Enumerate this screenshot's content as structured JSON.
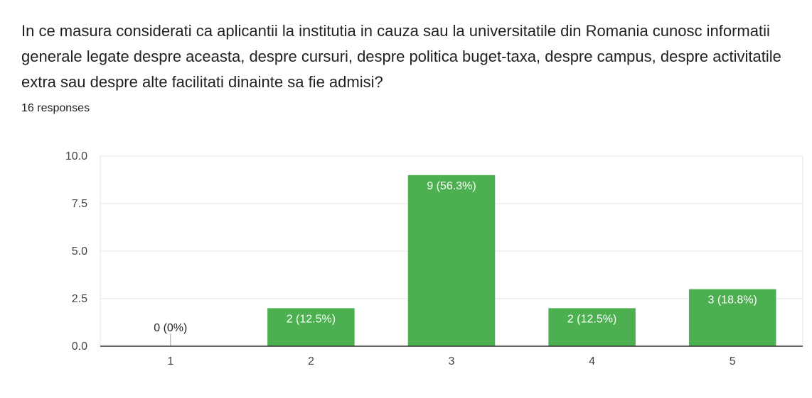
{
  "question": {
    "text": "In ce masura considerati ca aplicantii la institutia in cauza sau la universitatile din Romania cunosc informatii generale legate despre aceasta, despre cursuri, despre politica buget-taxa, despre campus, despre activitatile extra sau despre alte facilitati dinainte sa fie admisi?",
    "responses": "16 responses"
  },
  "chart_data": {
    "type": "bar",
    "categories": [
      "1",
      "2",
      "3",
      "4",
      "5"
    ],
    "values": [
      0,
      2,
      9,
      2,
      3
    ],
    "data_labels": [
      "0 (0%)",
      "2 (12.5%)",
      "9 (56.3%)",
      "2 (12.5%)",
      "3 (18.8%)"
    ],
    "yticks": [
      "0.0",
      "2.5",
      "5.0",
      "7.5",
      "10.0"
    ],
    "ylim": [
      0,
      10
    ],
    "grid": true,
    "legend": "none",
    "bar_color": "#4caf50",
    "title": "",
    "xlabel": "",
    "ylabel": ""
  }
}
